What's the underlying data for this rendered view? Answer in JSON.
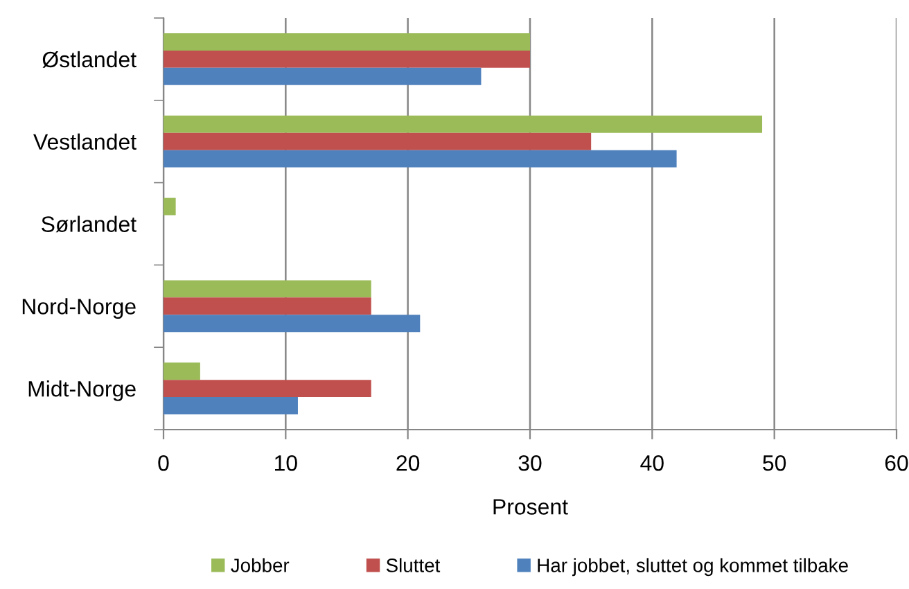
{
  "chart_data": {
    "type": "bar",
    "orientation": "horizontal",
    "xlabel": "Prosent",
    "categories": [
      "Østlandet",
      "Vestlandet",
      "Sørlandet",
      "Nord-Norge",
      "Midt-Norge"
    ],
    "series": [
      {
        "name": "Jobber",
        "color": "#9bbb59",
        "values": [
          30,
          49,
          1,
          17,
          3
        ]
      },
      {
        "name": "Sluttet",
        "color": "#c0504d",
        "values": [
          30,
          35,
          0,
          17,
          17
        ]
      },
      {
        "name": "Har jobbet, sluttet og kommet tilbake",
        "color": "#4f81bd",
        "values": [
          26,
          42,
          0,
          21,
          11
        ]
      }
    ],
    "xlim": [
      0,
      60
    ],
    "xticks": [
      0,
      10,
      20,
      30,
      40,
      50,
      60
    ],
    "grid": "x",
    "legend": "bottom"
  }
}
